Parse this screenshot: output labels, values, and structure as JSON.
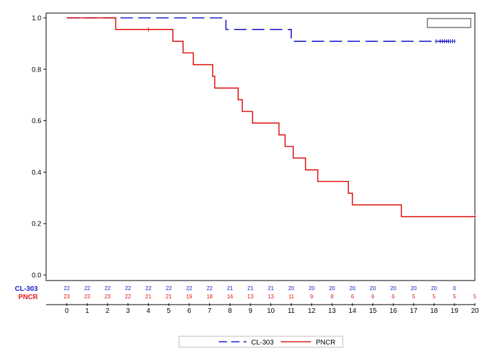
{
  "chart_data": {
    "type": "line",
    "title": "",
    "xlabel": "",
    "ylabel": "",
    "xlim": [
      -0.5,
      20.2
    ],
    "ylim": [
      0,
      1.0
    ],
    "x_ticks": [
      0,
      1,
      2,
      3,
      4,
      5,
      6,
      7,
      8,
      9,
      10,
      11,
      12,
      13,
      14,
      15,
      16,
      17,
      18,
      19,
      20
    ],
    "y_ticks": [
      0.0,
      0.2,
      0.4,
      0.6,
      0.8,
      1.0
    ],
    "y_tick_labels": [
      "0.0",
      "0.2",
      "0.4",
      "0.6",
      "0.8",
      "1.0"
    ],
    "grid": false,
    "legend_position": "bottom",
    "colors": {
      "cl303": "#1a1acc",
      "pncr": "#e01818"
    },
    "series": [
      {
        "name": "CL-303",
        "style": "dashed",
        "color": "#1a1acc",
        "steps": [
          [
            0,
            1.0
          ],
          [
            7.8,
            0.955
          ],
          [
            11.0,
            0.909
          ],
          [
            19.0,
            0.909
          ]
        ],
        "censored": [
          18.1,
          18.3,
          18.4,
          18.5,
          18.6,
          18.7,
          18.8,
          18.9,
          19.0
        ]
      },
      {
        "name": "PNCR",
        "style": "solid",
        "color": "#e01818",
        "steps": [
          [
            0,
            1.0
          ],
          [
            2.4,
            0.955
          ],
          [
            5.2,
            0.909
          ],
          [
            5.7,
            0.864
          ],
          [
            6.2,
            0.818
          ],
          [
            7.15,
            0.773
          ],
          [
            7.25,
            0.727
          ],
          [
            8.4,
            0.682
          ],
          [
            8.6,
            0.636
          ],
          [
            9.1,
            0.591
          ],
          [
            10.4,
            0.545
          ],
          [
            10.7,
            0.5
          ],
          [
            11.1,
            0.455
          ],
          [
            11.7,
            0.409
          ],
          [
            12.3,
            0.364
          ],
          [
            13.8,
            0.318
          ],
          [
            14.0,
            0.273
          ],
          [
            16.4,
            0.227
          ],
          [
            20.0,
            0.227
          ]
        ],
        "censored": [
          4.0,
          20.0
        ]
      }
    ],
    "risk_table": {
      "rows": [
        {
          "label": "CL-303",
          "color": "#1a1acc",
          "values": [
            "22",
            "22",
            "22",
            "22",
            "22",
            "22",
            "22",
            "22",
            "21",
            "21",
            "21",
            "20",
            "20",
            "20",
            "20",
            "20",
            "20",
            "20",
            "20",
            "0"
          ]
        },
        {
          "label": "PNCR",
          "color": "#e01818",
          "values": [
            "23",
            "23",
            "23",
            "22",
            "21",
            "21",
            "19",
            "18",
            "16",
            "13",
            "13",
            "11",
            "9",
            "8",
            "6",
            "6",
            "6",
            "5",
            "5",
            "5",
            "5"
          ]
        }
      ]
    }
  }
}
